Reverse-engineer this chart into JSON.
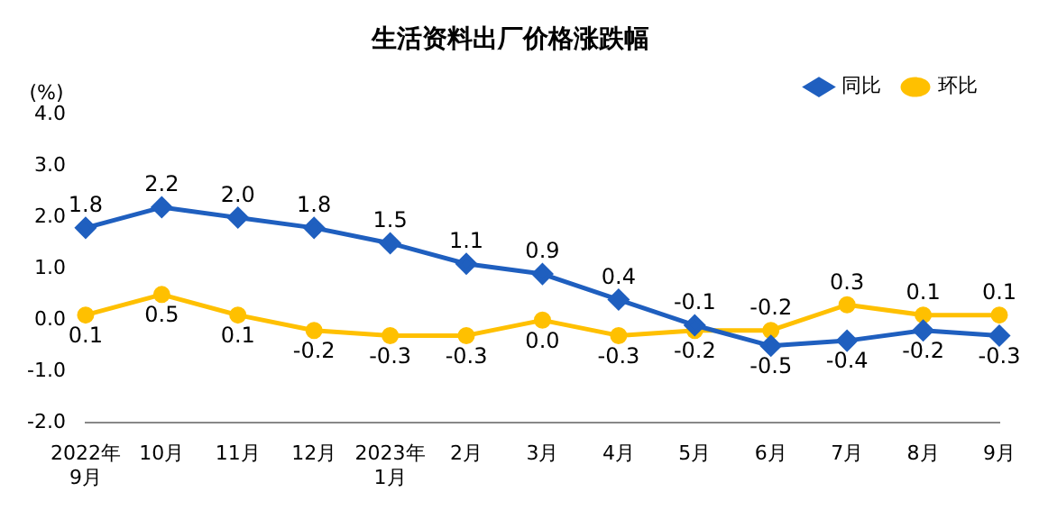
{
  "chart_data": {
    "type": "line",
    "title": "生活资料出厂价格涨跌幅",
    "ylabel": "(%)",
    "categories": [
      "2022年\n9月",
      "10月",
      "11月",
      "12月",
      "2023年\n1月",
      "2月",
      "3月",
      "4月",
      "5月",
      "6月",
      "7月",
      "8月",
      "9月"
    ],
    "series": [
      {
        "name": "同比",
        "color": "#1f5fbf",
        "marker": "diamond",
        "values": [
          1.8,
          2.2,
          2.0,
          1.8,
          1.5,
          1.1,
          0.9,
          0.4,
          -0.1,
          -0.5,
          -0.4,
          -0.2,
          -0.3
        ],
        "value_labels": [
          "1.8",
          "2.2",
          "2.0",
          "1.8",
          "1.5",
          "1.1",
          "0.9",
          "0.4",
          "-0.1",
          "-0.5",
          "-0.4",
          "-0.2",
          "-0.3"
        ]
      },
      {
        "name": "环比",
        "color": "#ffc000",
        "marker": "circle",
        "values": [
          0.1,
          0.5,
          0.1,
          -0.2,
          -0.3,
          -0.3,
          0.0,
          -0.3,
          -0.2,
          -0.2,
          0.3,
          0.1,
          0.1
        ],
        "value_labels": [
          "0.1",
          "0.5",
          "0.1",
          "-0.2",
          "-0.3",
          "-0.3",
          "0.0",
          "-0.3",
          "-0.2",
          "-0.2",
          "0.3",
          "0.1",
          "0.1"
        ]
      }
    ],
    "ylim": [
      -2,
      4
    ],
    "yticks": [
      {
        "value": -2,
        "label": "-2.0"
      },
      {
        "value": -1,
        "label": "-1.0"
      },
      {
        "value": 0,
        "label": "0.0"
      },
      {
        "value": 1,
        "label": "1.0"
      },
      {
        "value": 2,
        "label": "2.0"
      },
      {
        "value": 3,
        "label": "3.0"
      },
      {
        "value": 4,
        "label": "4.0"
      }
    ],
    "grid": false,
    "legend": "top right",
    "line_style": "solid"
  }
}
